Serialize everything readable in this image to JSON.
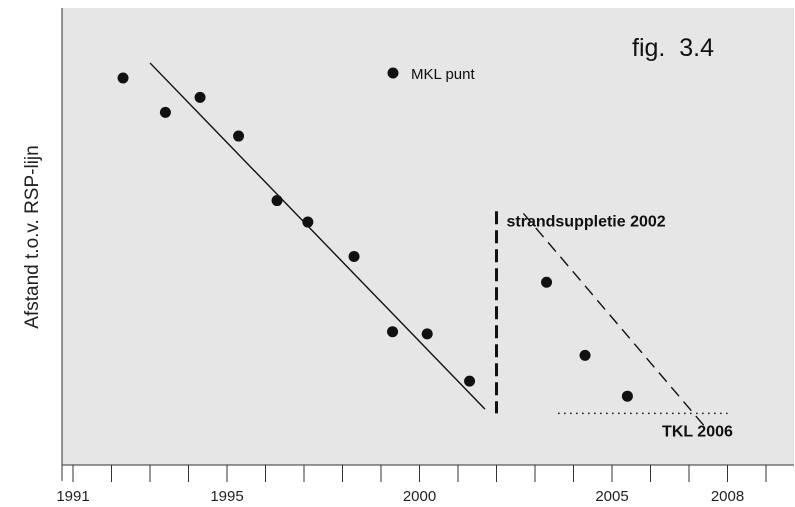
{
  "chart_data": {
    "type": "scatter",
    "fig_label": "fig.  3.4",
    "ylabel": "Afstand t.o.v. RSP-lijn",
    "xlabel": "",
    "x_tick_labels": [
      {
        "year": 1991,
        "label": "1991"
      },
      {
        "year": 1995,
        "label": "1995"
      },
      {
        "year": 2000,
        "label": "2000"
      },
      {
        "year": 2005,
        "label": "2005"
      },
      {
        "year": 2008,
        "label": "2008"
      }
    ],
    "xlim": [
      1991,
      2011
    ],
    "ylim": [
      0,
      100
    ],
    "legend": {
      "label": "MKL punt",
      "placement": "top-center"
    },
    "series": [
      {
        "name": "MKL punt",
        "points": [
          {
            "x": 1992.3,
            "y": 90
          },
          {
            "x": 1993.4,
            "y": 82
          },
          {
            "x": 1994.3,
            "y": 85.5
          },
          {
            "x": 1995.3,
            "y": 76.5
          },
          {
            "x": 1996.3,
            "y": 61.5
          },
          {
            "x": 1997.1,
            "y": 56.5
          },
          {
            "x": 1998.3,
            "y": 48.5
          },
          {
            "x": 1999.3,
            "y": 31
          },
          {
            "x": 2000.2,
            "y": 30.5
          },
          {
            "x": 2001.3,
            "y": 19.5
          },
          {
            "x": 2003.3,
            "y": 42.5
          },
          {
            "x": 2004.3,
            "y": 25.5
          },
          {
            "x": 2005.4,
            "y": 16
          }
        ]
      }
    ],
    "trend_lines": [
      {
        "style": "solid",
        "from": {
          "x": 1993.0,
          "y": 93.5
        },
        "to": {
          "x": 2001.7,
          "y": 13
        }
      },
      {
        "style": "dashed",
        "from": {
          "x": 2002.7,
          "y": 58.5
        },
        "to": {
          "x": 2007.5,
          "y": 8
        }
      }
    ],
    "annotations": [
      {
        "text": "strandsuppletie 2002",
        "x": 2002.0,
        "style": "vertical-dashed",
        "y_top": 59,
        "y_bottom": 12
      },
      {
        "text": "TKL 2006",
        "y": 12,
        "style": "horizontal-dotted",
        "x_from": 2003.6,
        "x_to": 2008.0
      }
    ],
    "grid": false
  }
}
